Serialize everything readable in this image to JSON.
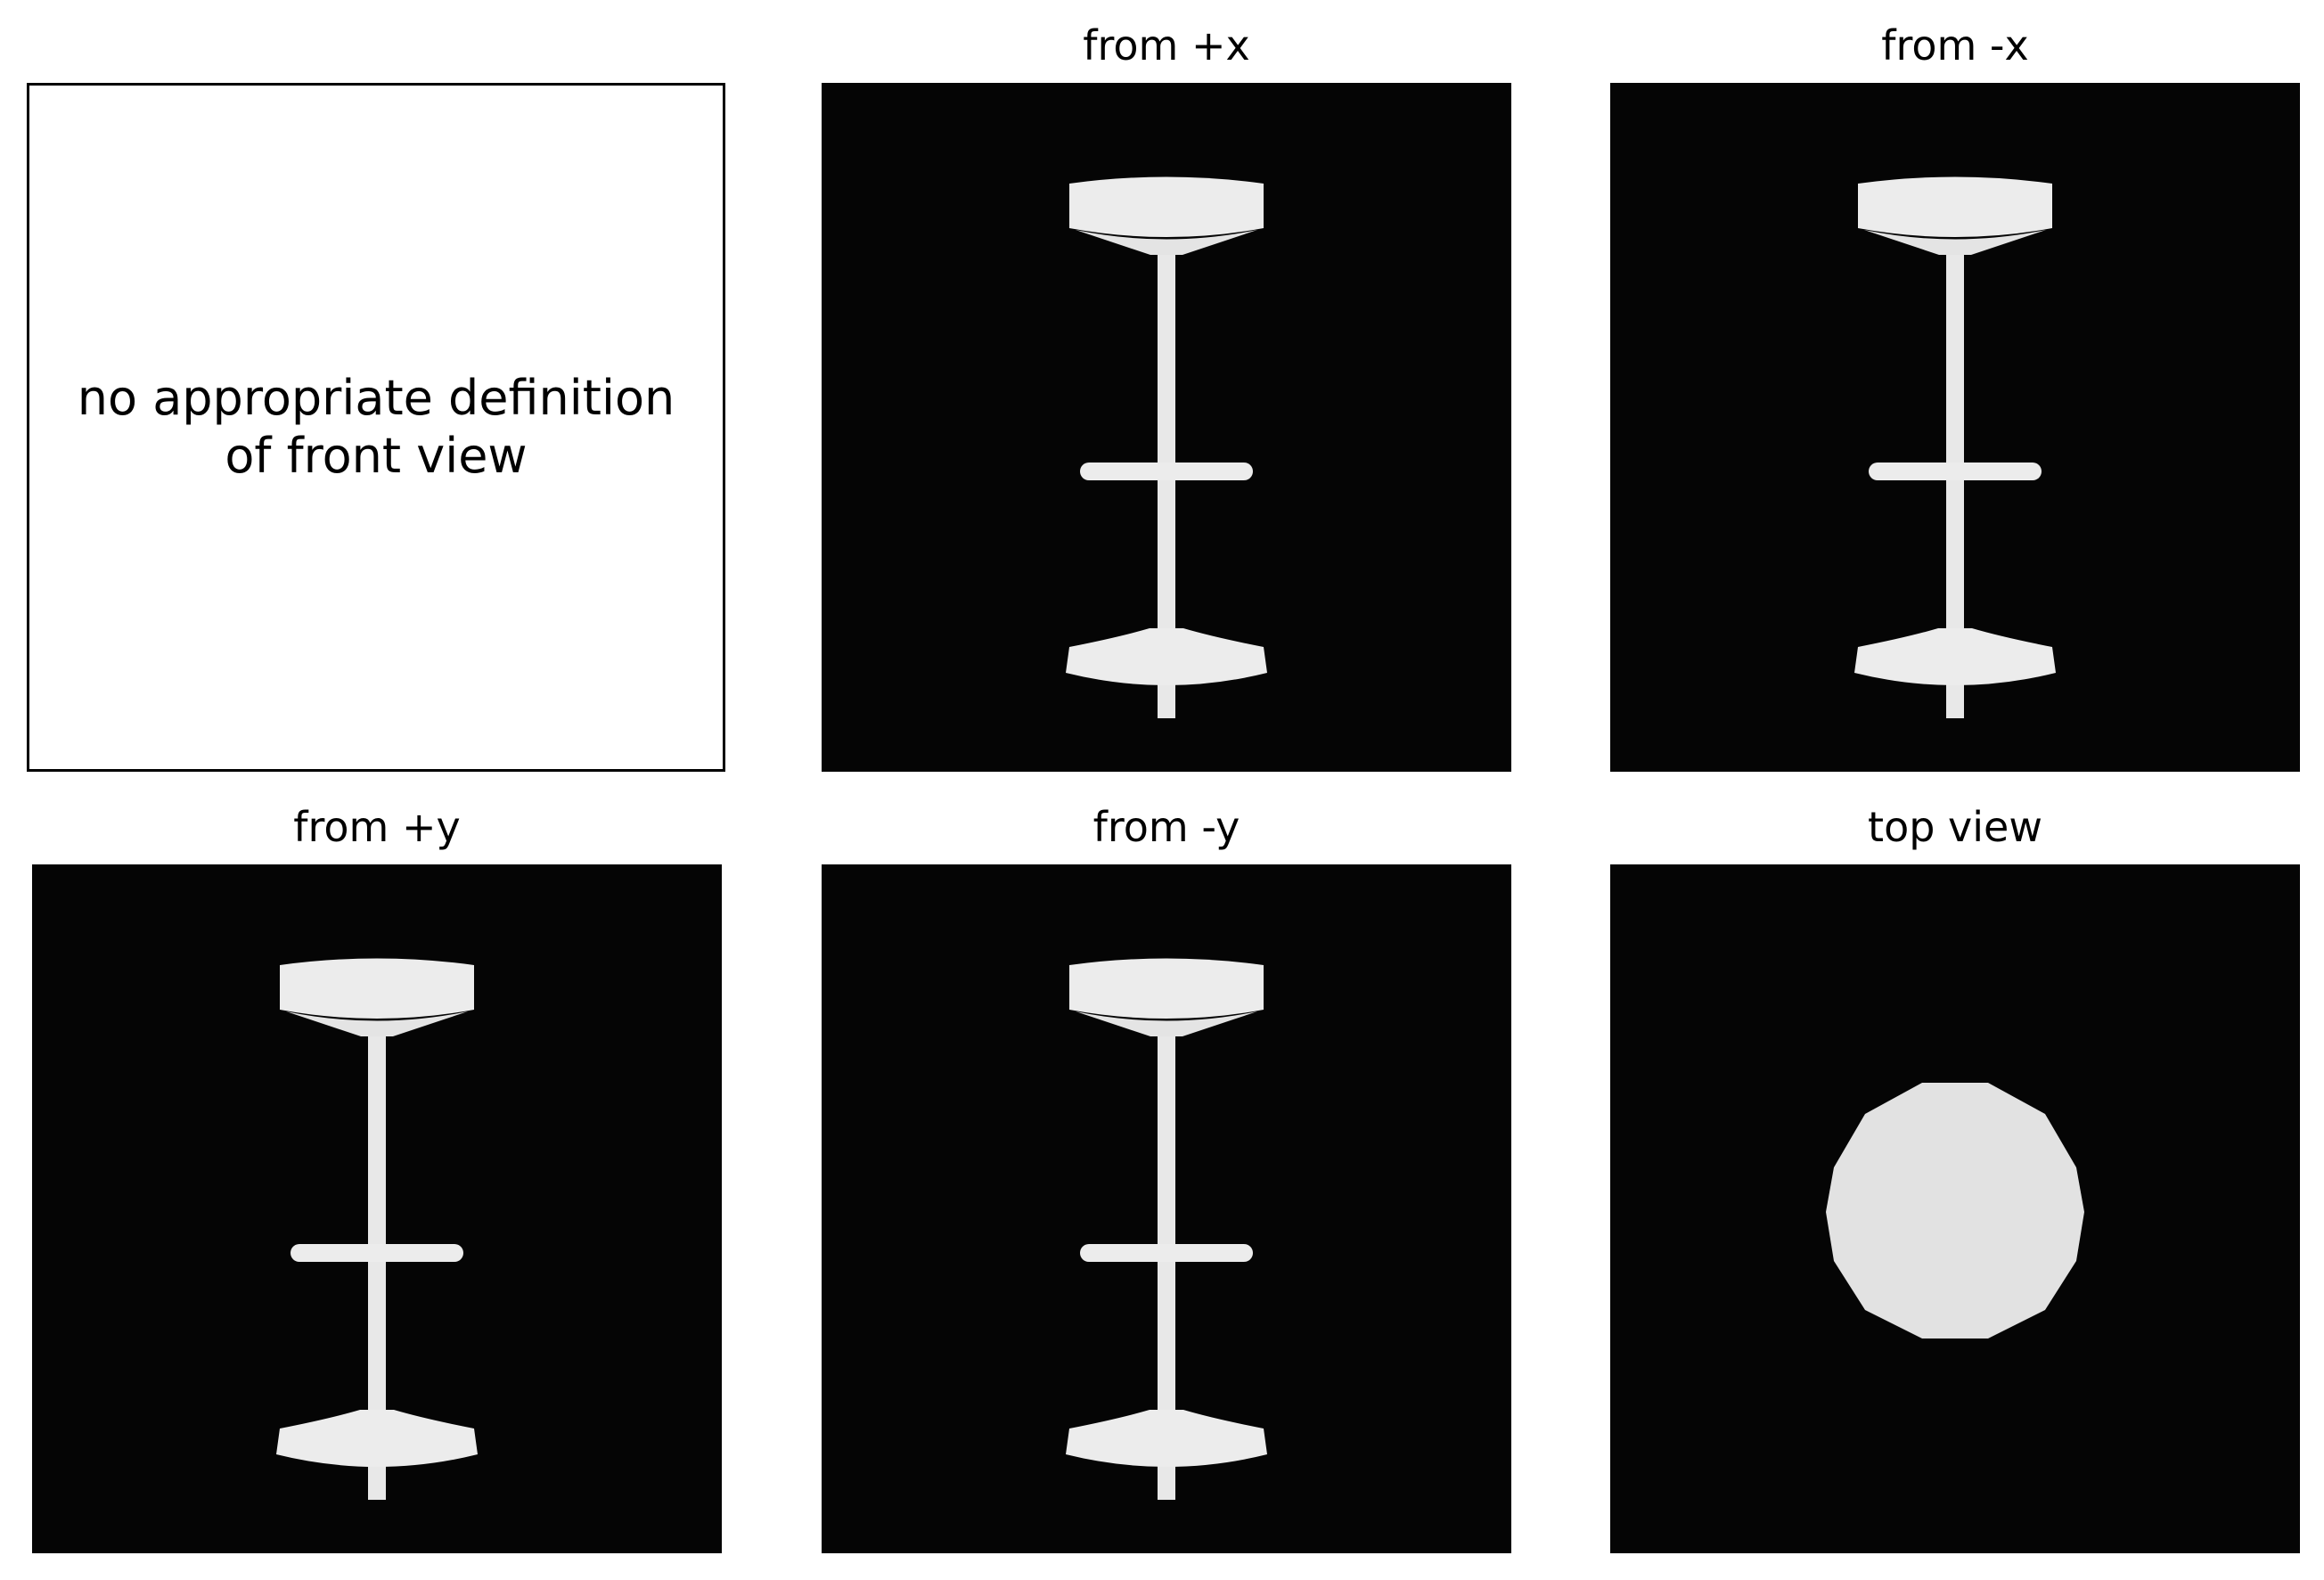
{
  "figure": {
    "panels": [
      {
        "id": "front",
        "title": "",
        "message": "no appropriate definition\nof front view"
      },
      {
        "id": "plus-x",
        "title": "from +x",
        "view": "side",
        "image": "bar-stool-render"
      },
      {
        "id": "minus-x",
        "title": "from -x",
        "view": "side",
        "image": "bar-stool-render"
      },
      {
        "id": "plus-y",
        "title": "from +y",
        "view": "side",
        "image": "bar-stool-render"
      },
      {
        "id": "minus-y",
        "title": "from -y",
        "view": "side",
        "image": "bar-stool-render"
      },
      {
        "id": "top",
        "title": "top view",
        "view": "top",
        "image": "bar-stool-top-render"
      }
    ]
  },
  "colors": {
    "render_background": "#050505",
    "object": "#ececec",
    "object_shade": "#d6d6d6"
  }
}
